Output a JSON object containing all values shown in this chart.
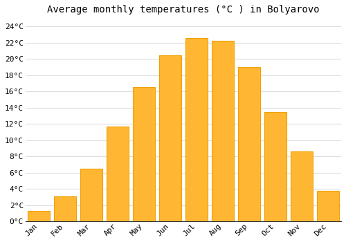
{
  "title": "Average monthly temperatures (°C ) in Bolyarovo",
  "months": [
    "Jan",
    "Feb",
    "Mar",
    "Apr",
    "May",
    "Jun",
    "Jul",
    "Aug",
    "Sep",
    "Oct",
    "Nov",
    "Dec"
  ],
  "values": [
    1.3,
    3.1,
    6.5,
    11.7,
    16.5,
    20.4,
    22.6,
    22.2,
    19.0,
    13.5,
    8.6,
    3.8
  ],
  "bar_color_light": "#FFB733",
  "bar_color_dark": "#F0A000",
  "background_color": "#FFFFFF",
  "grid_color": "#DDDDDD",
  "ylim": [
    0,
    25
  ],
  "yticks": [
    0,
    2,
    4,
    6,
    8,
    10,
    12,
    14,
    16,
    18,
    20,
    22,
    24
  ],
  "title_fontsize": 10,
  "tick_fontsize": 8,
  "bar_width": 0.85
}
